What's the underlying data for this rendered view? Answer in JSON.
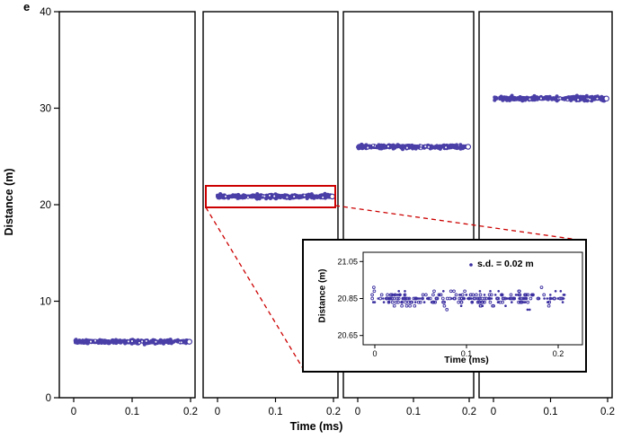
{
  "figure": {
    "panel_letter": "e"
  },
  "chart_data": {
    "type": "scatter",
    "title": "",
    "xlabel": "Time (ms)",
    "ylabel": "Distance (m)",
    "ylim": [
      0,
      40
    ],
    "yticks": [
      0,
      10,
      20,
      30,
      40
    ],
    "xticks": [
      0,
      0.1,
      0.2
    ],
    "x_range_ms": [
      0,
      0.2
    ],
    "grid": false,
    "marker_color": "#3b2fa0",
    "highlight_color": "#cc0000",
    "panels": [
      {
        "name": "panel-1",
        "mean_distance_m": 5.8,
        "sd_m": 0.02,
        "n_points": 310,
        "highlighted": false
      },
      {
        "name": "panel-2",
        "mean_distance_m": 20.85,
        "sd_m": 0.02,
        "n_points": 310,
        "highlighted": true
      },
      {
        "name": "panel-3",
        "mean_distance_m": 26.0,
        "sd_m": 0.02,
        "n_points": 310,
        "highlighted": false
      },
      {
        "name": "panel-4",
        "mean_distance_m": 31.0,
        "sd_m": 0.02,
        "n_points": 310,
        "highlighted": false
      }
    ],
    "inset": {
      "xlabel": "Time (ms)",
      "ylabel": "Distance (m)",
      "ylim": [
        20.6,
        21.1
      ],
      "yticks": [
        20.65,
        20.85,
        21.05
      ],
      "xticks": [
        0,
        0.1,
        0.2
      ],
      "mean_distance_m": 20.85,
      "sd_m": 0.02,
      "quantization_m": 0.02,
      "n_points": 260,
      "sd_label": "s.d. = 0.02 m"
    }
  }
}
